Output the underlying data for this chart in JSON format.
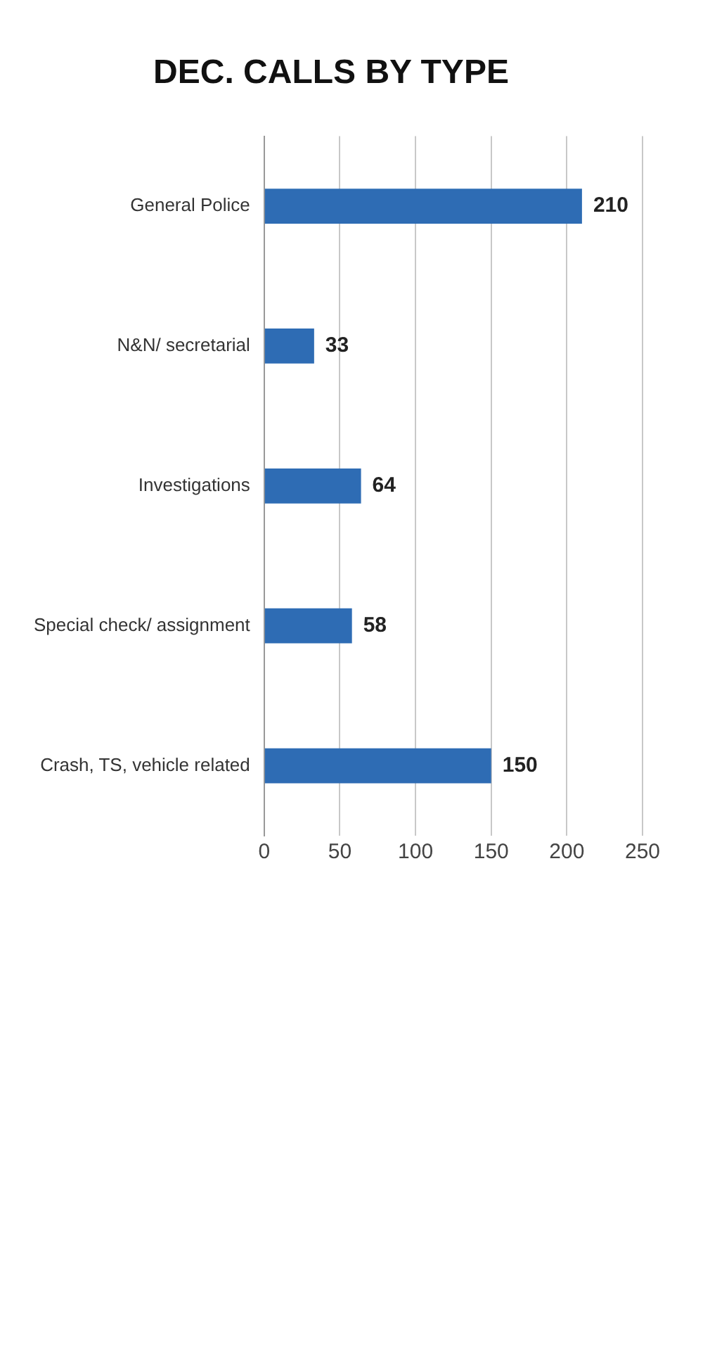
{
  "chart_data": {
    "type": "bar",
    "orientation": "horizontal",
    "title": "DEC. CALLS BY TYPE",
    "categories": [
      "General Police",
      "N&N/ secretarial",
      "Investigations",
      "Special check/ assignment",
      "Crash, TS, vehicle related"
    ],
    "values": [
      210,
      33,
      64,
      58,
      150
    ],
    "color": "#2e6cb4",
    "xlim": [
      0,
      250
    ],
    "xticks": [
      0,
      50,
      100,
      150,
      200,
      250
    ],
    "grid": "x",
    "data_labels": true,
    "legend": false
  }
}
